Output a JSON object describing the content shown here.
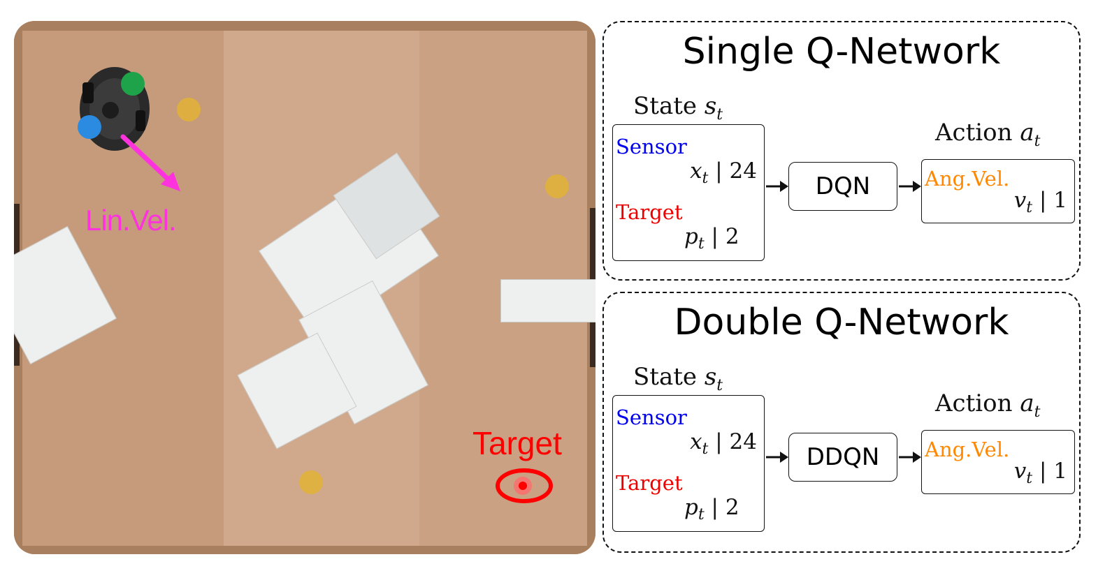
{
  "arena": {
    "robot_label": "Lin.Vel.",
    "target_label": "Target",
    "colors": {
      "wood": "#c99f80",
      "robot_arrow": "#ff33dd",
      "target": "#ff0000",
      "marker": "#e0b13a"
    }
  },
  "panels": [
    {
      "title": "Single Q-Network",
      "state_head": "State ",
      "state_sym": "s",
      "state_sub": "t",
      "sensor_label": "Sensor",
      "sensor_sym": "x",
      "sensor_sub": "t",
      "sensor_dim": " | 24",
      "target_label": "Target",
      "target_sym": "p",
      "target_sub": "t",
      "target_dim": " | 2",
      "network": "DQN",
      "action_head": "Action ",
      "action_sym": "a",
      "action_sub": "t",
      "action_label": "Ang.Vel.",
      "action_val_sym": "v",
      "action_val_sub": "t",
      "action_dim": " | 1"
    },
    {
      "title": "Double Q-Network",
      "state_head": "State ",
      "state_sym": "s",
      "state_sub": "t",
      "sensor_label": "Sensor",
      "sensor_sym": "x",
      "sensor_sub": "t",
      "sensor_dim": " | 24",
      "target_label": "Target",
      "target_sym": "p",
      "target_sub": "t",
      "target_dim": " | 2",
      "network": "DDQN",
      "action_head": "Action ",
      "action_sym": "a",
      "action_sub": "t",
      "action_label": "Ang.Vel.",
      "action_val_sym": "v",
      "action_val_sub": "t",
      "action_dim": " | 1"
    }
  ]
}
